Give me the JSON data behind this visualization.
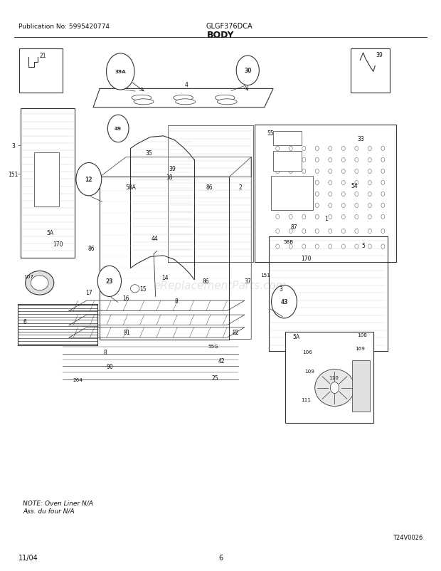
{
  "title": "BODY",
  "model": "GLGF376DCA",
  "publication": "Publication No: 5995420774",
  "date": "11/04",
  "page": "6",
  "watermark": "eReplacementParts.com",
  "diagram_code": "T24V0026",
  "note_line1": "NOTE: Oven Liner N/A",
  "note_line2": "Ass. du four N/A",
  "bg_color": "#ffffff",
  "line_color": "#333333",
  "text_color": "#111111",
  "watermark_color": "#cccccc",
  "fig_width": 6.2,
  "fig_height": 8.03,
  "dpi": 100
}
